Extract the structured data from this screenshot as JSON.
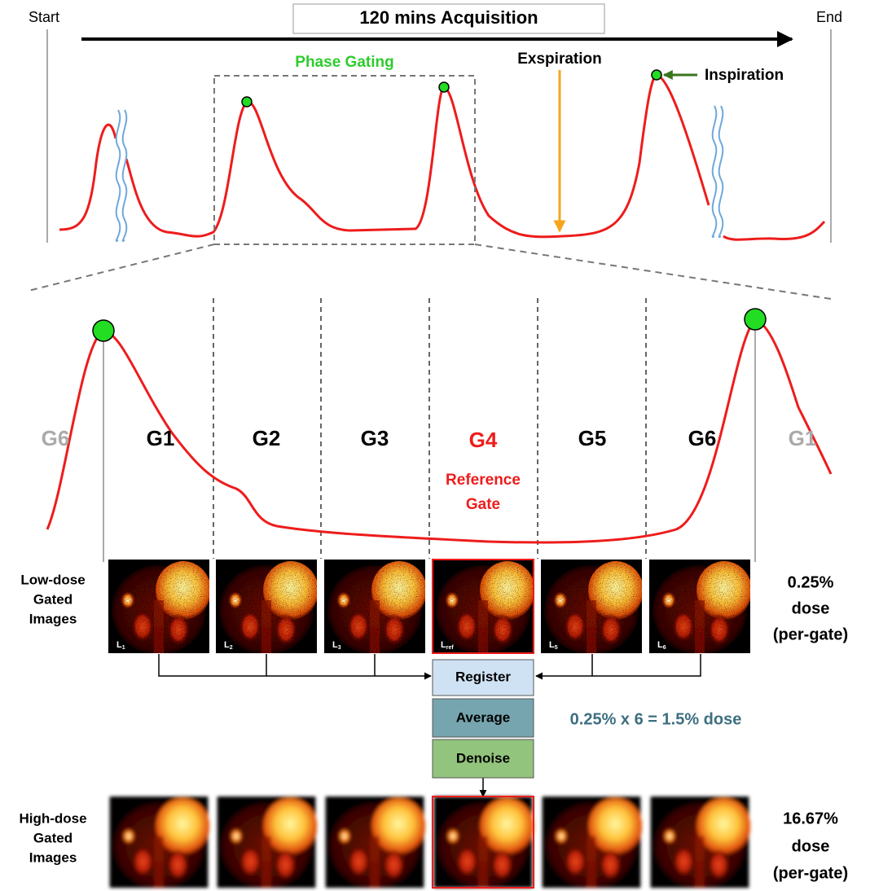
{
  "header": {
    "start": "Start",
    "title": "120 mins Acquisition",
    "end": "End"
  },
  "top_annotations": {
    "phase_gating": "Phase Gating",
    "expiration": "Exspiration",
    "inspiration": "Inspiration"
  },
  "gates": [
    "G6",
    "G1",
    "G2",
    "G3",
    "G4",
    "G5",
    "G6",
    "G1"
  ],
  "reference_gate": [
    "Reference",
    "Gate"
  ],
  "low_dose": {
    "label": [
      "Low-dose",
      "Gated",
      "Images"
    ],
    "images": [
      {
        "letter": "L",
        "sub": "1"
      },
      {
        "letter": "L",
        "sub": "2"
      },
      {
        "letter": "L",
        "sub": "3"
      },
      {
        "letter": "L",
        "sub": "ref"
      },
      {
        "letter": "L",
        "sub": "5"
      },
      {
        "letter": "L",
        "sub": "6"
      }
    ],
    "dose": [
      "0.25%",
      "dose",
      "(per-gate)"
    ]
  },
  "pipeline": {
    "steps": [
      "Register",
      "Average",
      "Denoise"
    ],
    "note": "0.25% x 6 = 1.5% dose"
  },
  "high_dose": {
    "label": [
      "High-dose",
      "Gated",
      "Images"
    ],
    "dose": [
      "16.67%",
      "dose",
      "(per-gate)"
    ]
  }
}
